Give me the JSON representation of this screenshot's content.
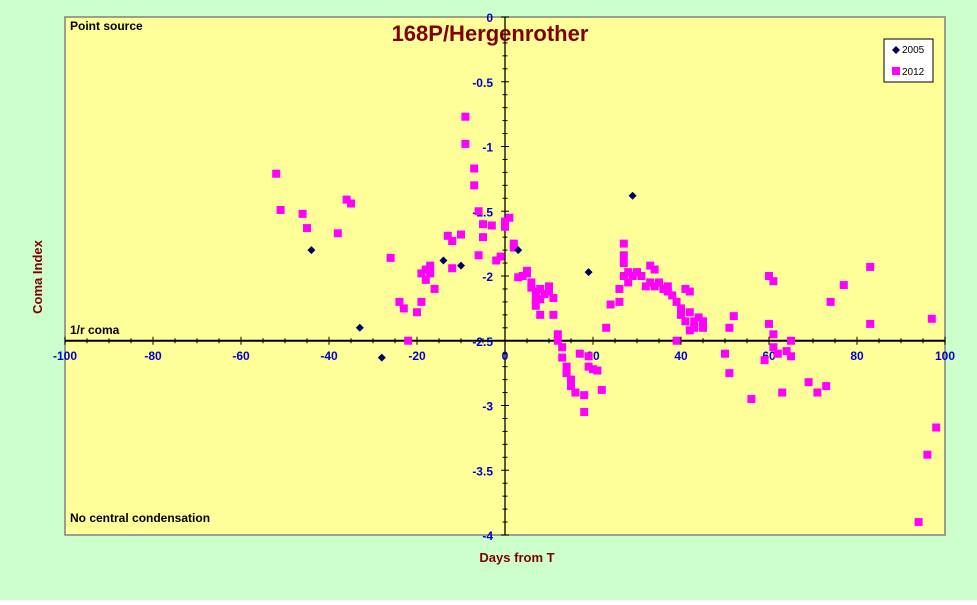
{
  "colors": {
    "outer_background": "#ccffcc",
    "plot_background": "#ffff99",
    "title_color": "#800000",
    "axis_label_color": "#800000",
    "tick_label_color": "#0000cc",
    "series_2005_color": "#000066",
    "series_2012_color": "#ff00ff"
  },
  "chart_data": {
    "type": "scatter",
    "title": "168P/Hergenrother",
    "xlabel": "Days from T",
    "ylabel": "Coma Index",
    "xlim": [
      -100,
      100
    ],
    "ylim": [
      -4,
      0
    ],
    "y_reversed": true,
    "grid": false,
    "legend_position": "top-right",
    "x_ticks": [
      "-100",
      "-80",
      "-60",
      "-40",
      "-20",
      "0",
      "20",
      "40",
      "60",
      "80",
      "100"
    ],
    "y_ticks": [
      "0",
      "-0.5",
      "-1",
      "-1.5",
      "-2",
      "-2.5",
      "-3",
      "-3.5",
      "-4"
    ],
    "reference_line": {
      "y": -2.5,
      "label": "1/r coma"
    },
    "annotations": {
      "top": "Point source",
      "bottom": "No central condensation"
    },
    "series": [
      {
        "name": "2005",
        "marker": "diamond",
        "points": [
          [
            -44,
            -1.8
          ],
          [
            -33,
            -2.4
          ],
          [
            -28,
            -2.63
          ],
          [
            -14,
            -1.88
          ],
          [
            -10,
            -1.92
          ],
          [
            3,
            -1.8
          ],
          [
            19,
            -1.97
          ],
          [
            29,
            -1.38
          ]
        ]
      },
      {
        "name": "2012",
        "marker": "square",
        "points": [
          [
            -52,
            -1.21
          ],
          [
            -51,
            -1.49
          ],
          [
            -46,
            -1.52
          ],
          [
            -45,
            -1.63
          ],
          [
            -38,
            -1.67
          ],
          [
            -36,
            -1.41
          ],
          [
            -35,
            -1.44
          ],
          [
            -26,
            -1.86
          ],
          [
            -24,
            -2.2
          ],
          [
            -23,
            -2.25
          ],
          [
            -22,
            -2.5
          ],
          [
            -20,
            -2.28
          ],
          [
            -19,
            -2.2
          ],
          [
            -19,
            -1.98
          ],
          [
            -18,
            -2.03
          ],
          [
            -18,
            -1.95
          ],
          [
            -17,
            -1.92
          ],
          [
            -17,
            -1.98
          ],
          [
            -16,
            -2.1
          ],
          [
            -13,
            -1.69
          ],
          [
            -12,
            -1.73
          ],
          [
            -12,
            -1.94
          ],
          [
            -10,
            -1.68
          ],
          [
            -9,
            -0.77
          ],
          [
            -9,
            -0.98
          ],
          [
            -7,
            -1.17
          ],
          [
            -7,
            -1.3
          ],
          [
            -6,
            -1.5
          ],
          [
            -6,
            -1.84
          ],
          [
            -5,
            -1.6
          ],
          [
            -5,
            -1.7
          ],
          [
            -3,
            -1.61
          ],
          [
            -2,
            -1.88
          ],
          [
            -1,
            -1.85
          ],
          [
            0,
            -1.58
          ],
          [
            0,
            -1.62
          ],
          [
            1,
            -1.55
          ],
          [
            2,
            -1.75
          ],
          [
            2,
            -1.78
          ],
          [
            3,
            -2.01
          ],
          [
            4,
            -2.0
          ],
          [
            5,
            -1.98
          ],
          [
            5,
            -1.96
          ],
          [
            6,
            -2.05
          ],
          [
            6,
            -2.09
          ],
          [
            7,
            -2.12
          ],
          [
            7,
            -2.18
          ],
          [
            7,
            -2.23
          ],
          [
            8,
            -2.1
          ],
          [
            8,
            -2.18
          ],
          [
            8,
            -2.3
          ],
          [
            9,
            -2.14
          ],
          [
            10,
            -2.12
          ],
          [
            10,
            -2.08
          ],
          [
            11,
            -2.17
          ],
          [
            11,
            -2.3
          ],
          [
            12,
            -2.45
          ],
          [
            12,
            -2.5
          ],
          [
            13,
            -2.55
          ],
          [
            13,
            -2.63
          ],
          [
            14,
            -2.7
          ],
          [
            14,
            -2.75
          ],
          [
            15,
            -2.8
          ],
          [
            15,
            -2.85
          ],
          [
            16,
            -2.9
          ],
          [
            17,
            -2.6
          ],
          [
            18,
            -3.05
          ],
          [
            18,
            -2.92
          ],
          [
            19,
            -2.7
          ],
          [
            19,
            -2.62
          ],
          [
            20,
            -2.72
          ],
          [
            21,
            -2.73
          ],
          [
            22,
            -2.88
          ],
          [
            23,
            -2.4
          ],
          [
            24,
            -2.22
          ],
          [
            26,
            -2.2
          ],
          [
            26,
            -2.1
          ],
          [
            27,
            -1.75
          ],
          [
            27,
            -1.84
          ],
          [
            27,
            -1.9
          ],
          [
            27,
            -2.0
          ],
          [
            28,
            -2.05
          ],
          [
            28,
            -1.97
          ],
          [
            29,
            -2.0
          ],
          [
            30,
            -1.97
          ],
          [
            31,
            -2.0
          ],
          [
            32,
            -2.08
          ],
          [
            33,
            -1.92
          ],
          [
            33,
            -2.05
          ],
          [
            34,
            -1.95
          ],
          [
            34,
            -2.08
          ],
          [
            35,
            -2.05
          ],
          [
            36,
            -2.1
          ],
          [
            37,
            -2.08
          ],
          [
            37,
            -2.12
          ],
          [
            38,
            -2.15
          ],
          [
            39,
            -2.2
          ],
          [
            39,
            -2.5
          ],
          [
            40,
            -2.25
          ],
          [
            40,
            -2.3
          ],
          [
            41,
            -2.1
          ],
          [
            41,
            -2.35
          ],
          [
            42,
            -2.12
          ],
          [
            42,
            -2.28
          ],
          [
            42,
            -2.42
          ],
          [
            43,
            -2.35
          ],
          [
            43,
            -2.4
          ],
          [
            44,
            -2.32
          ],
          [
            45,
            -2.35
          ],
          [
            45,
            -2.4
          ],
          [
            50,
            -2.6
          ],
          [
            51,
            -2.4
          ],
          [
            51,
            -2.75
          ],
          [
            52,
            -2.31
          ],
          [
            56,
            -2.95
          ],
          [
            59,
            -2.65
          ],
          [
            60,
            -2.37
          ],
          [
            60,
            -2.0
          ],
          [
            61,
            -2.04
          ],
          [
            61,
            -2.45
          ],
          [
            61,
            -2.55
          ],
          [
            62,
            -2.6
          ],
          [
            63,
            -2.9
          ],
          [
            64,
            -2.58
          ],
          [
            65,
            -2.5
          ],
          [
            65,
            -2.62
          ],
          [
            69,
            -2.82
          ],
          [
            71,
            -2.9
          ],
          [
            73,
            -2.85
          ],
          [
            74,
            -2.2
          ],
          [
            77,
            -2.07
          ],
          [
            83,
            -2.37
          ],
          [
            83,
            -1.93
          ],
          [
            94,
            -3.9
          ],
          [
            96,
            -3.38
          ],
          [
            97,
            -2.33
          ],
          [
            98,
            -3.17
          ]
        ]
      }
    ]
  }
}
